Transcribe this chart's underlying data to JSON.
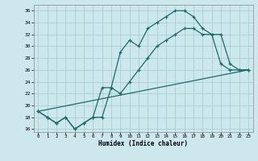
{
  "xlabel": "Humidex (Indice chaleur)",
  "background_color": "#cde8ec",
  "grid_color": "#aacdd4",
  "line_color": "#1a6b6b",
  "xlim": [
    -0.5,
    23.5
  ],
  "ylim": [
    15.5,
    37.0
  ],
  "xticks": [
    0,
    1,
    2,
    3,
    4,
    5,
    6,
    7,
    8,
    9,
    10,
    11,
    12,
    13,
    14,
    15,
    16,
    17,
    18,
    19,
    20,
    21,
    22,
    23
  ],
  "yticks": [
    16,
    18,
    20,
    22,
    24,
    26,
    28,
    30,
    32,
    34,
    36
  ],
  "line1_x": [
    0,
    1,
    2,
    3,
    4,
    5,
    6,
    7,
    8,
    9,
    10,
    11,
    12,
    13,
    14,
    15,
    16,
    17,
    18,
    19,
    20,
    21,
    22,
    23
  ],
  "line1_y": [
    19,
    18,
    17,
    18,
    16,
    17,
    18,
    18,
    23,
    29,
    31,
    30,
    33,
    34,
    35,
    36,
    36,
    35,
    33,
    32,
    27,
    26,
    26,
    26
  ],
  "line2_x": [
    0,
    1,
    2,
    3,
    4,
    5,
    6,
    7,
    8,
    9,
    10,
    11,
    12,
    13,
    14,
    15,
    16,
    17,
    18,
    19,
    20,
    21,
    22,
    23
  ],
  "line2_y": [
    19,
    18,
    17,
    18,
    16,
    17,
    18,
    23,
    23,
    22,
    24,
    26,
    28,
    30,
    31,
    32,
    33,
    33,
    32,
    32,
    32,
    27,
    26,
    26
  ],
  "line3_x": [
    0,
    23
  ],
  "line3_y": [
    19,
    26
  ]
}
